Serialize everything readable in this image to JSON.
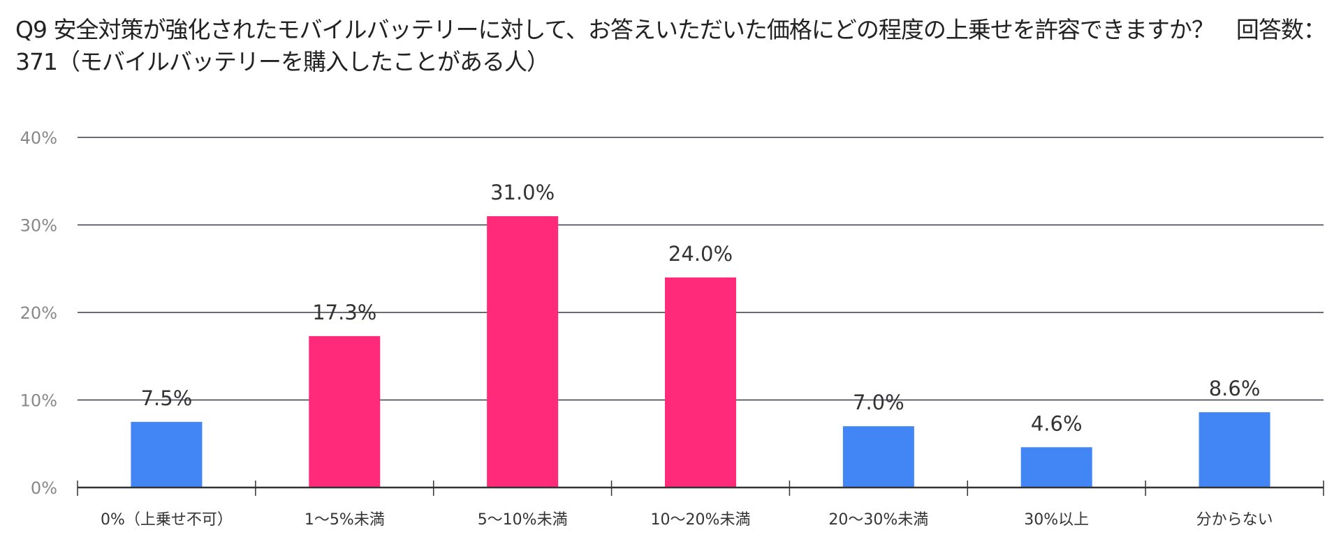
{
  "chart_data": {
    "type": "bar",
    "title": "Q9 安全対策が強化されたモバイルバッテリーに対して、お答えいただいた価格にどの程度の上乗せを許容できますか？　回答数：371（モバイルバッテリーを購入したことがある人）",
    "categories": [
      "0%（上乗せ不可）",
      "1～5%未満",
      "5～10%未満",
      "10～20%未満",
      "20～30%未満",
      "30%以上",
      "分からない"
    ],
    "values": [
      7.5,
      17.3,
      31.0,
      24.0,
      7.0,
      4.6,
      8.6
    ],
    "data_labels": [
      "7.5%",
      "17.3%",
      "31.0%",
      "24.0%",
      "7.0%",
      "4.6%",
      "8.6%"
    ],
    "highlighted": [
      false,
      true,
      true,
      true,
      false,
      false,
      false
    ],
    "ylim": [
      0,
      40
    ],
    "yticks": [
      0,
      10,
      20,
      30,
      40
    ],
    "ytick_labels": [
      "0%",
      "10%",
      "20%",
      "30%",
      "40%"
    ],
    "xlabel": "",
    "ylabel": "",
    "grid": true,
    "legend": "none",
    "colors": {
      "default": "#4285f4",
      "highlight": "#ff2a7a",
      "grid": "#3a3a4a",
      "text": "#333333",
      "tick_text": "#888888"
    }
  }
}
